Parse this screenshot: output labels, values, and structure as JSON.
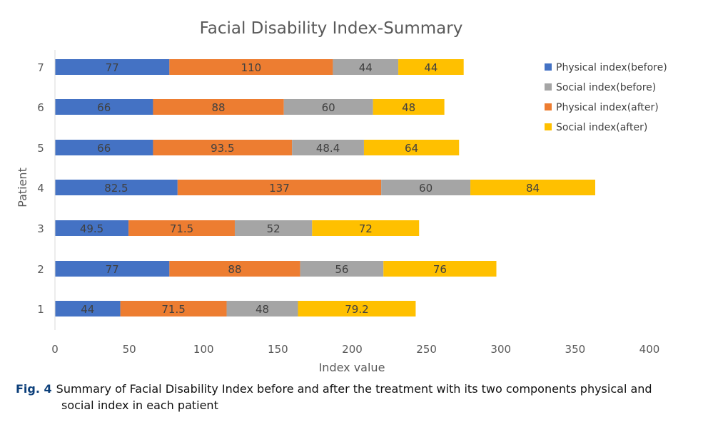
{
  "chart_data": {
    "type": "bar",
    "orientation": "horizontal",
    "stacked": true,
    "title": "Facial Disability Index-Summary",
    "xlabel": "Index value",
    "ylabel": "Patient",
    "xlim": [
      0,
      400
    ],
    "x_ticks": [
      0,
      50,
      100,
      150,
      200,
      250,
      300,
      350,
      400
    ],
    "categories": [
      "1",
      "2",
      "3",
      "4",
      "5",
      "6",
      "7"
    ],
    "series": [
      {
        "name": "Physical index(before)",
        "color": "#4472c4",
        "labels": [
          "44",
          "77",
          "49.5",
          "82.5",
          "66",
          "66",
          "77"
        ],
        "values": [
          44,
          77,
          49.5,
          82.5,
          66,
          66,
          77
        ]
      },
      {
        "name": "Physical index(after)",
        "color": "#ed7d31",
        "labels": [
          "71.5",
          "88",
          "71.5",
          "137",
          "93.5",
          "88",
          "110"
        ],
        "values": [
          71.5,
          88,
          71.5,
          137,
          93.5,
          88,
          110
        ]
      },
      {
        "name": "Social index(before)",
        "color": "#a5a5a5",
        "labels": [
          "48",
          "56",
          "52",
          "60",
          "48.4",
          "60",
          "44"
        ],
        "values": [
          48,
          56,
          52,
          60,
          48.4,
          60,
          44
        ]
      },
      {
        "name": "Social index(after)",
        "color": "#ffc000",
        "labels": [
          "79.2",
          "76",
          "72",
          "84",
          "64",
          "48",
          "44"
        ],
        "values": [
          79.2,
          76,
          72,
          84,
          64,
          48,
          44
        ]
      }
    ],
    "legend": {
      "position": "top-right",
      "entries": [
        {
          "label": "Physical index(before)",
          "color": "#4472c4"
        },
        {
          "label": "Social index(before)",
          "color": "#a5a5a5"
        },
        {
          "label": "Physical index(after)",
          "color": "#ed7d31"
        },
        {
          "label": "Social index(after)",
          "color": "#ffc000"
        }
      ]
    },
    "grid": false
  },
  "caption": {
    "label": "Fig. 4",
    "line1": "Summary of Facial Disability Index before and after the treatment with its two components physical and",
    "line2": "social index in each patient"
  }
}
